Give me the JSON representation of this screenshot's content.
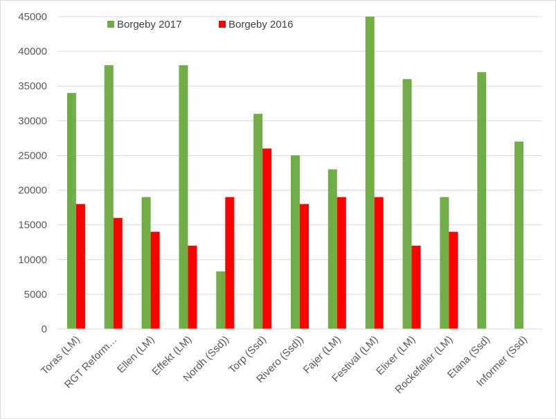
{
  "chart_data": {
    "type": "bar",
    "title": "",
    "xlabel": "",
    "ylabel": "",
    "ylim": [
      0,
      45000
    ],
    "yticks": [
      "0",
      "5000",
      "10000",
      "15000",
      "20000",
      "25000",
      "30000",
      "35000",
      "40000",
      "45000"
    ],
    "grid": true,
    "legend_position": "top-left",
    "categories": [
      "Toras (LM)",
      "RGT Reform…",
      "Ellen (LM)",
      "Effekt (LM)",
      "Nordh (Ssd))",
      "Torp (Ssd)",
      "Rivero (Ssd))",
      "Fajer (LM)",
      "Festival (LM)",
      "Elixer (LM)",
      "Rockefeller (LM)",
      "Etana (Ssd)",
      "Informer (Ssd)"
    ],
    "series": [
      {
        "name": "Borgeby 2017",
        "color": "#70ad47",
        "values": [
          34000,
          38000,
          19000,
          38000,
          8300,
          31000,
          25000,
          23000,
          45000,
          36000,
          19000,
          37000,
          27000
        ]
      },
      {
        "name": "Borgeby 2016",
        "color": "#ff0000",
        "values": [
          18000,
          16000,
          14000,
          12000,
          19000,
          26000,
          18000,
          19000,
          19000,
          12000,
          14000,
          null,
          null
        ]
      }
    ]
  }
}
